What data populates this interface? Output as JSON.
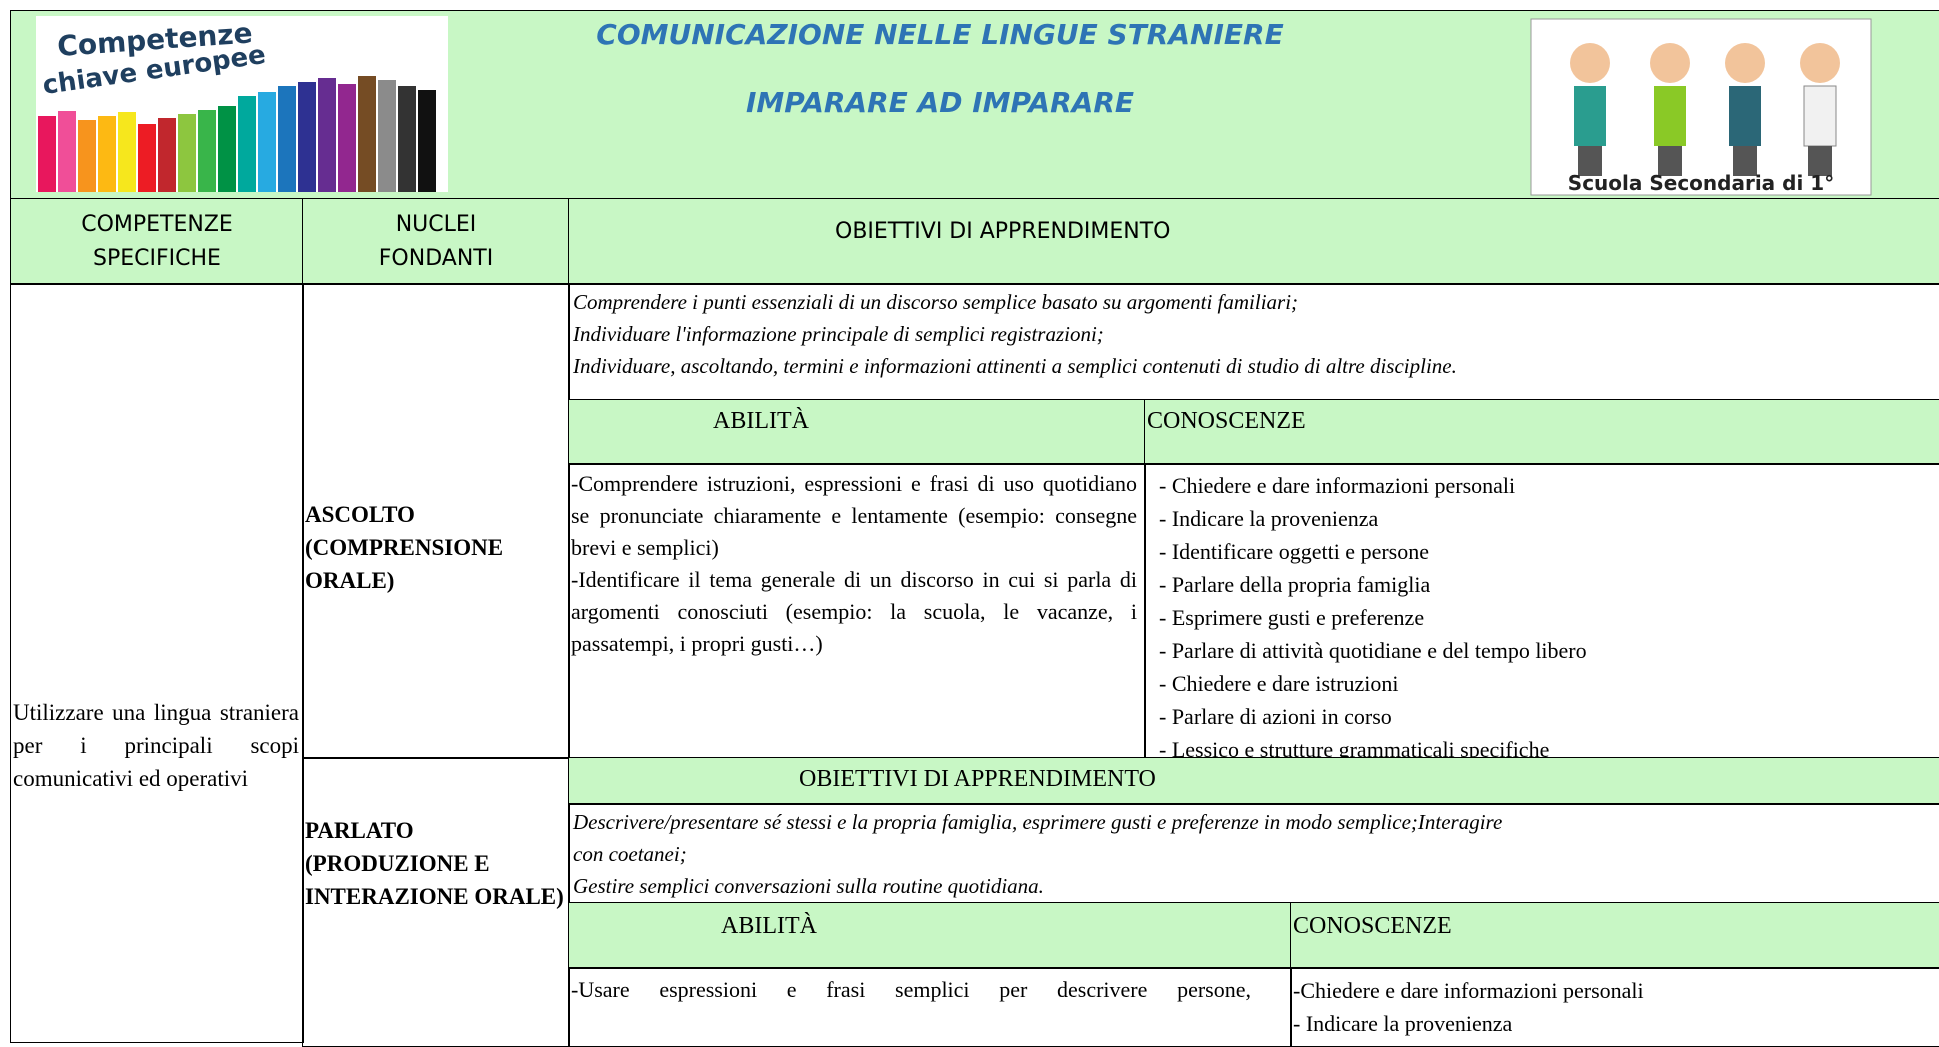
{
  "header": {
    "logo_text": [
      "Competenze",
      "chiave europee"
    ],
    "title_1": "COMUNICAZIONE NELLE LINGUE STRANIERE",
    "title_2": "IMPARARE AD IMPARARE",
    "badge_caption": "Scuola Secondaria di 1°"
  },
  "table": {
    "columns": [
      "COMPETENZE SPECIFICHE",
      "NUCLEI FONDANTI",
      "OBIETTIVI DI APPRENDIMENTO"
    ],
    "competenza": "Utilizzare una lingua straniera per i principali scopi comunicativi ed operativi",
    "sections": [
      {
        "nucleo": "ASCOLTO (COMPRENSIONE ORALE)",
        "obiettivi": [
          "Comprendere i punti essenziali di un discorso semplice basato su argomenti familiari;",
          "Individuare l'informazione principale di semplici registrazioni;",
          "Individuare, ascoltando, termini e informazioni attinenti a  semplici contenuti di studio di altre discipline."
        ],
        "abilita_header": "ABILITÀ",
        "conoscenze_header": "CONOSCENZE",
        "abilita": [
          "-Comprendere istruzioni, espressioni e frasi di uso quotidiano se pronunciate chiaramente e lentamente (esempio: consegne brevi e semplici)",
          "-Identificare il tema generale di un discorso in cui si parla di argomenti conosciuti (esempio: la scuola, le vacanze, i passatempi, i propri gusti…)"
        ],
        "conoscenze": [
          "- Chiedere e dare informazioni personali",
          "- Indicare la provenienza",
          "- Identificare oggetti e persone",
          "- Parlare della propria famiglia",
          "- Esprimere gusti e preferenze",
          "- Parlare di attività quotidiane e del tempo libero",
          "- Chiedere e dare istruzioni",
          "- Parlare di azioni in corso",
          "- Lessico e strutture grammaticali specifiche"
        ]
      },
      {
        "nucleo": "PARLATO (PRODUZIONE E INTERAZIONE ORALE)",
        "obiettivi_header": "OBIETTIVI DI APPRENDIMENTO",
        "obiettivi": [
          "Descrivere/presentare sé stessi e la propria famiglia, esprimere gusti e preferenze in modo semplice;Interagire con coetanei;",
          "Gestire semplici conversazioni sulla routine quotidiana."
        ],
        "abilita_header": "ABILITÀ",
        "conoscenze_header": "CONOSCENZE",
        "abilita": [
          "-Usare espressioni e frasi semplici per descrivere persone,"
        ],
        "conoscenze": [
          "-Chiedere e dare informazioni personali",
          "- Indicare la provenienza"
        ]
      }
    ]
  }
}
